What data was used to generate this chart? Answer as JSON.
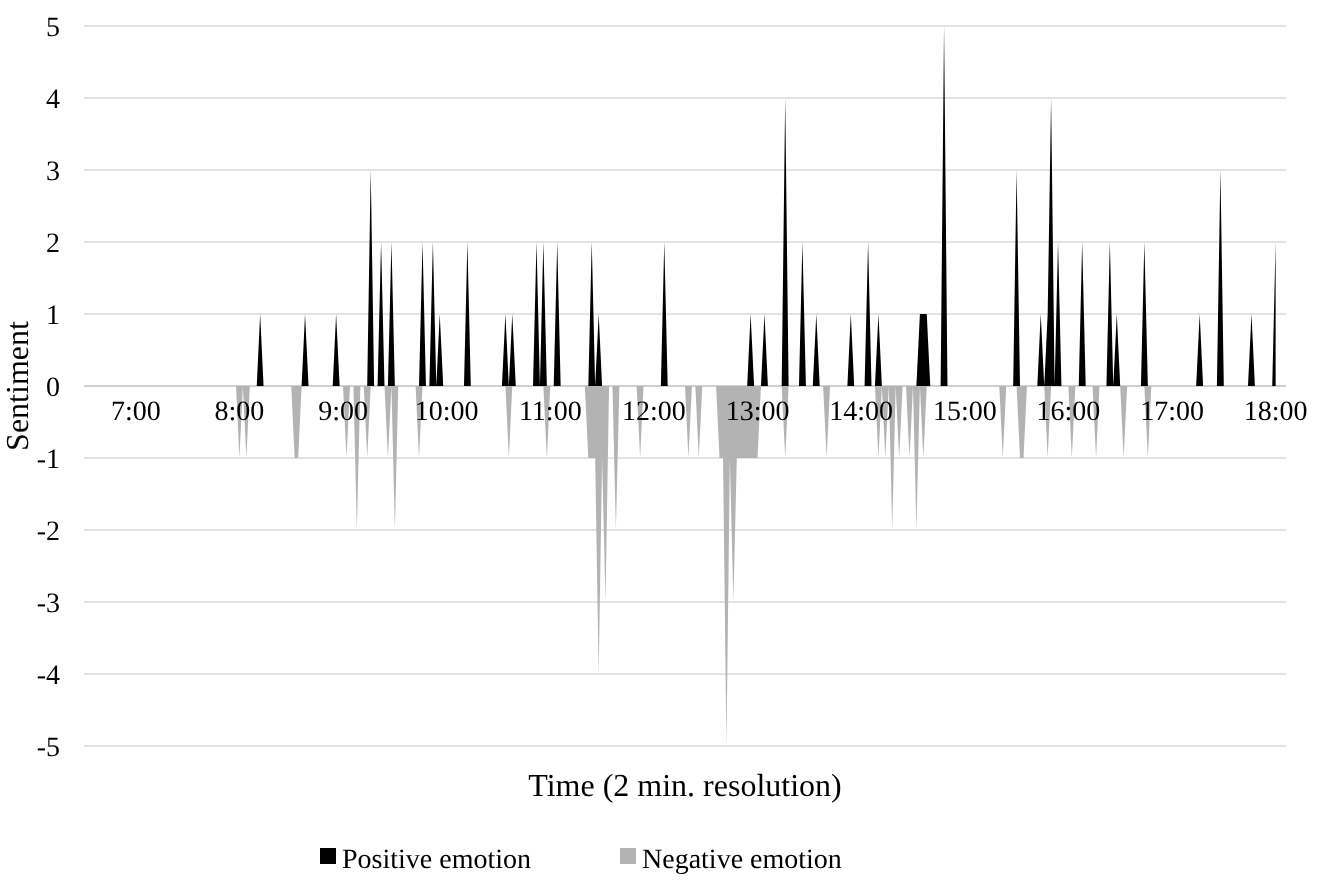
{
  "chart_data": {
    "type": "area",
    "xlabel": "Time (2 min. resolution)",
    "ylabel": "Sentiment",
    "xlim": [
      6.5,
      18.1
    ],
    "xticks": [
      {
        "value": 7,
        "label": "7:00"
      },
      {
        "value": 8,
        "label": "8:00"
      },
      {
        "value": 9,
        "label": "9:00"
      },
      {
        "value": 10,
        "label": "10:00"
      },
      {
        "value": 11,
        "label": "11:00"
      },
      {
        "value": 12,
        "label": "12:00"
      },
      {
        "value": 13,
        "label": "13:00"
      },
      {
        "value": 14,
        "label": "14:00"
      },
      {
        "value": 15,
        "label": "15:00"
      },
      {
        "value": 16,
        "label": "16:00"
      },
      {
        "value": 17,
        "label": "17:00"
      },
      {
        "value": 18,
        "label": "18:00"
      }
    ],
    "ylim": [
      -5,
      5
    ],
    "yticks": [
      -5,
      -4,
      -3,
      -2,
      -1,
      0,
      1,
      2,
      3,
      4,
      5
    ],
    "grid": "y",
    "legend": "bottom",
    "series": [
      {
        "name": "Positive emotion",
        "color": "#000000",
        "x": [
          7,
          8.167,
          8.2,
          8.233,
          8.6,
          8.633,
          8.667,
          8.9,
          8.933,
          8.967,
          9.233,
          9.267,
          9.3,
          9.333,
          9.367,
          9.4,
          9.433,
          9.467,
          9.5,
          9.733,
          9.767,
          9.8,
          9.833,
          9.867,
          9.9,
          9.933,
          9.967,
          10.167,
          10.2,
          10.233,
          10.533,
          10.567,
          10.6,
          10.633,
          10.667,
          10.833,
          10.867,
          10.9,
          10.933,
          10.967,
          11.033,
          11.067,
          11.1,
          11.367,
          11.4,
          11.433,
          11.467,
          11.5,
          12.067,
          12.1,
          12.133,
          12.9,
          12.933,
          12.967,
          13.033,
          13.067,
          13.1,
          13.233,
          13.267,
          13.3,
          13.4,
          13.433,
          13.467,
          13.533,
          13.567,
          13.6,
          13.867,
          13.9,
          13.933,
          14.033,
          14.067,
          14.1,
          14.133,
          14.167,
          14.2,
          14.533,
          14.567,
          14.6,
          14.633,
          14.667,
          14.767,
          14.8,
          14.833,
          15.467,
          15.5,
          15.533,
          15.7,
          15.733,
          15.767,
          15.8,
          15.833,
          15.867,
          15.9,
          15.933,
          16.1,
          16.133,
          16.167,
          16.367,
          16.4,
          16.433,
          16.467,
          16.5,
          16.7,
          16.733,
          16.767,
          17.233,
          17.267,
          17.3,
          17.433,
          17.467,
          17.5,
          17.733,
          17.767,
          17.8,
          17.967,
          18
        ],
        "values": [
          0,
          0,
          1,
          0,
          0,
          1,
          0,
          0,
          1,
          0,
          0,
          3,
          0,
          0,
          2,
          0,
          0,
          2,
          0,
          0,
          2,
          0,
          0,
          2,
          0,
          1,
          0,
          0,
          2,
          0,
          0,
          1,
          0,
          1,
          0,
          0,
          2,
          0,
          2,
          0,
          0,
          2,
          0,
          0,
          2,
          0,
          1,
          0,
          0,
          2,
          0,
          0,
          1,
          0,
          0,
          1,
          0,
          0,
          4,
          0,
          0,
          2,
          0,
          0,
          1,
          0,
          0,
          1,
          0,
          0,
          2,
          0,
          0,
          1,
          0,
          0,
          1,
          1,
          1,
          0,
          0,
          5,
          0,
          0,
          3,
          0,
          0,
          1,
          0,
          1,
          4,
          0,
          2,
          0,
          0,
          2,
          0,
          0,
          2,
          0,
          1,
          0,
          0,
          2,
          0,
          0,
          1,
          0,
          0,
          3,
          0,
          0,
          1,
          0,
          0,
          2
        ]
      },
      {
        "name": "Negative emotion",
        "color": "#b3b3b3",
        "x": [
          7,
          7.967,
          8,
          8.033,
          8.067,
          8.1,
          8.5,
          8.533,
          8.567,
          8.6,
          9,
          9.033,
          9.067,
          9.1,
          9.133,
          9.167,
          9.2,
          9.233,
          9.267,
          9.4,
          9.433,
          9.467,
          9.5,
          9.533,
          9.7,
          9.733,
          9.767,
          10.567,
          10.6,
          10.633,
          10.933,
          10.967,
          11,
          11.333,
          11.367,
          11.4,
          11.433,
          11.467,
          11.5,
          11.533,
          11.567,
          11.6,
          11.633,
          11.667,
          11.833,
          11.867,
          11.9,
          12.3,
          12.333,
          12.367,
          12.4,
          12.433,
          12.467,
          12.6,
          12.633,
          12.667,
          12.7,
          12.733,
          12.767,
          12.8,
          12.833,
          12.867,
          12.9,
          12.933,
          12.967,
          13,
          13.033,
          13.233,
          13.267,
          13.3,
          13.633,
          13.667,
          13.7,
          14.133,
          14.167,
          14.2,
          14.233,
          14.267,
          14.3,
          14.333,
          14.367,
          14.4,
          14.433,
          14.467,
          14.5,
          14.533,
          14.567,
          14.6,
          14.633,
          15.333,
          15.367,
          15.4,
          15.5,
          15.533,
          15.567,
          15.6,
          15.767,
          15.8,
          15.833,
          16,
          16.033,
          16.067,
          16.233,
          16.267,
          16.3,
          16.5,
          16.533,
          16.567,
          16.733,
          16.767,
          16.8,
          18
        ],
        "values": [
          0,
          0,
          -1,
          0,
          -1,
          0,
          0,
          -1,
          -1,
          0,
          0,
          -1,
          0,
          0,
          -2,
          0,
          0,
          -1,
          0,
          0,
          -1,
          0,
          -2,
          0,
          0,
          -1,
          0,
          0,
          -1,
          0,
          0,
          -1,
          0,
          0,
          -1,
          -1,
          -1,
          -4,
          -1,
          -3,
          0,
          0,
          -2,
          0,
          0,
          -1,
          0,
          0,
          -1,
          0,
          0,
          -1,
          0,
          0,
          -1,
          -1,
          -5,
          -1,
          -3,
          -1,
          -1,
          -1,
          -1,
          -1,
          -1,
          -1,
          0,
          0,
          -1,
          0,
          0,
          -1,
          0,
          0,
          -1,
          0,
          -1,
          0,
          -2,
          0,
          -1,
          0,
          0,
          -1,
          0,
          -2,
          0,
          -1,
          0,
          0,
          -1,
          0,
          0,
          -1,
          -1,
          0,
          0,
          -1,
          0,
          0,
          -1,
          0,
          0,
          -1,
          0,
          0,
          -1,
          0,
          0,
          -1,
          0,
          0
        ]
      }
    ]
  }
}
